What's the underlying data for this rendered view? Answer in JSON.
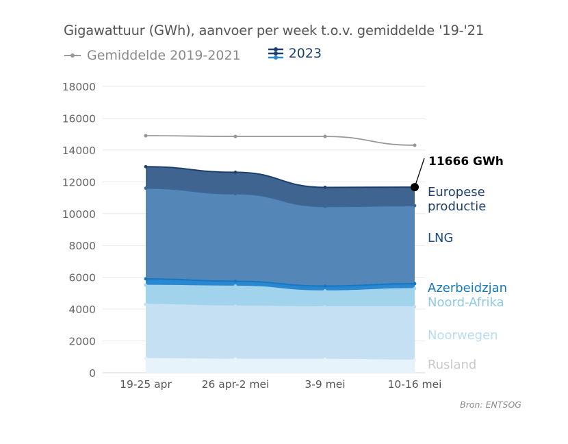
{
  "title": "Gigawattuur (GWh), aanvoer per week t.o.v. gemiddelde '19-'21",
  "legend": {
    "average": "Gemiddelde 2019-2021",
    "current": "2023"
  },
  "source": "Bron: ENTSOG",
  "end_label": "11666 GWh",
  "colors": {
    "average": "#999999",
    "europese_productie": "#3f6490",
    "lng": "#5487b8",
    "azerbeidzjan": "#2a87d0",
    "noord_afrika": "#a2d3ec",
    "noorwegen": "#c5e0f3",
    "rusland": "#e6f3fb"
  },
  "chart_data": {
    "type": "area",
    "categories": [
      "19-25 apr",
      "26 apr-2 mei",
      "3-9 mei",
      "10-16 mei"
    ],
    "ylim": [
      0,
      18000
    ],
    "yticks": [
      0,
      2000,
      4000,
      6000,
      8000,
      10000,
      12000,
      14000,
      16000,
      18000
    ],
    "grid": true,
    "stacked": true,
    "average": {
      "name": "Gemiddelde 2019-2021",
      "values": [
        14900,
        14850,
        14850,
        14300
      ]
    },
    "series": [
      {
        "name": "Rusland",
        "key": "rusland",
        "values": [
          900,
          850,
          850,
          800
        ]
      },
      {
        "name": "Noorwegen",
        "key": "noorwegen",
        "values": [
          3400,
          3350,
          3300,
          3350
        ]
      },
      {
        "name": "Noord-Afrika",
        "key": "noord_afrika",
        "values": [
          1200,
          1250,
          1000,
          1150
        ]
      },
      {
        "name": "Azerbeidzjan",
        "key": "azerbeidzjan",
        "values": [
          400,
          300,
          300,
          300
        ]
      },
      {
        "name": "LNG",
        "key": "lng",
        "values": [
          5700,
          5500,
          5000,
          4900
        ]
      },
      {
        "name": "Europese\nproductie",
        "key": "europese_productie",
        "values": [
          1350,
          1350,
          1200,
          1166
        ]
      }
    ]
  }
}
